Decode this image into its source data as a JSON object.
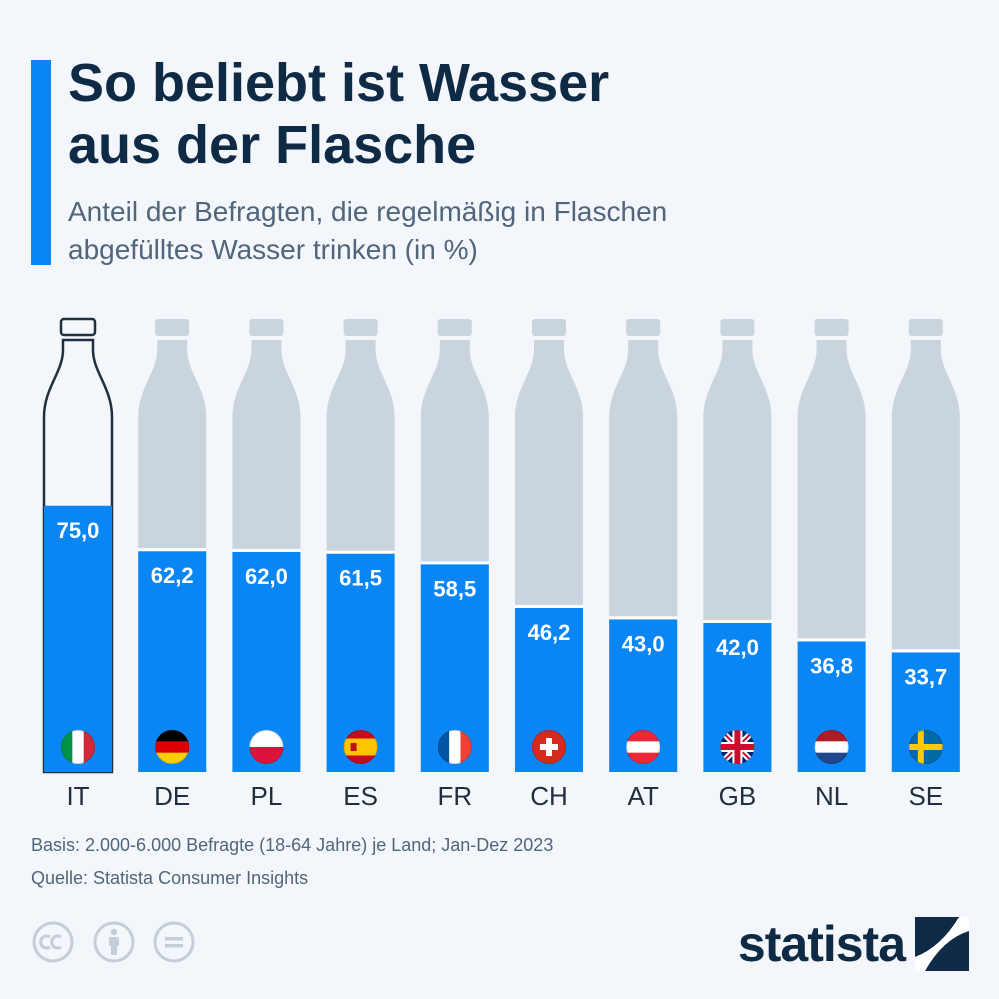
{
  "header": {
    "title": "So beliebt ist Wasser\naus der Flasche",
    "subtitle": "Anteil der Befragten, die regelmäßig in Flaschen\nabgefülltes Wasser trinken (in %)"
  },
  "chart_data": {
    "type": "bar",
    "title": "So beliebt ist Wasser aus der Flasche",
    "subtitle": "Anteil der Befragten, die regelmäßig in Flaschen abgefülltes Wasser trinken (in %)",
    "categories": [
      "IT",
      "DE",
      "PL",
      "ES",
      "FR",
      "CH",
      "AT",
      "GB",
      "NL",
      "SE"
    ],
    "values": [
      75.0,
      62.2,
      62.0,
      61.5,
      58.5,
      46.2,
      43.0,
      42.0,
      36.8,
      33.7
    ],
    "value_labels": [
      "75,0",
      "62,2",
      "62,0",
      "61,5",
      "58,5",
      "46,2",
      "43,0",
      "42,0",
      "36,8",
      "33,7"
    ],
    "ylim": [
      0,
      100
    ],
    "icon_names": [
      "flag-it-icon",
      "flag-de-icon",
      "flag-pl-icon",
      "flag-es-icon",
      "flag-fr-icon",
      "flag-ch-icon",
      "flag-at-icon",
      "flag-gb-icon",
      "flag-nl-icon",
      "flag-se-icon"
    ],
    "colors": {
      "fill": "#0a86f4",
      "empty": "#c9d4dc",
      "label": "#ffffff",
      "category": "#1f2f3f"
    },
    "grid": false
  },
  "footer": {
    "basis": "Basis: 2.000-6.000 Befragte (18-64 Jahre) je Land; Jan-Dez 2023",
    "source": "Quelle: Statista Consumer Insights",
    "logo": "statista"
  },
  "license_icons": [
    "creative-commons-icon",
    "attribution-icon",
    "no-derivatives-icon"
  ]
}
